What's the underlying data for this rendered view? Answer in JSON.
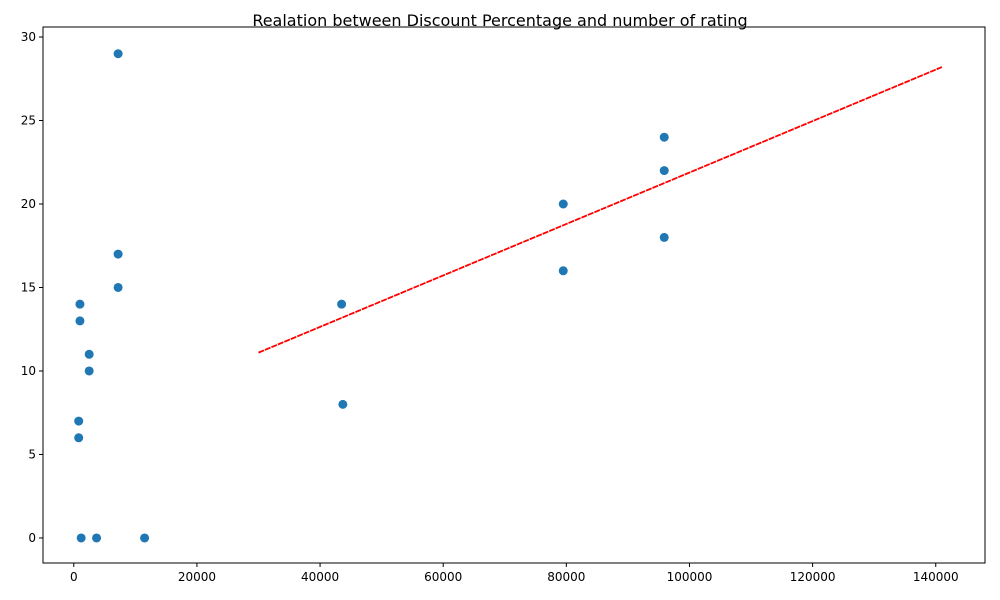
{
  "chart_data": {
    "type": "scatter",
    "title": "Realation between Discount Percentage and number of rating",
    "xlabel": "",
    "ylabel": "",
    "xlim": [
      -5000,
      148000
    ],
    "ylim": [
      -1.5,
      30.6
    ],
    "xticks": [
      0,
      20000,
      40000,
      60000,
      80000,
      100000,
      120000,
      140000
    ],
    "yticks": [
      0,
      5,
      10,
      15,
      20,
      25,
      30
    ],
    "grid": false,
    "point_color": "#1f77b4",
    "line_color": "#ff0000",
    "points": [
      {
        "x": 7200,
        "y": 29
      },
      {
        "x": 95900,
        "y": 24
      },
      {
        "x": 95900,
        "y": 22
      },
      {
        "x": 79500,
        "y": 20
      },
      {
        "x": 95900,
        "y": 18
      },
      {
        "x": 7200,
        "y": 17
      },
      {
        "x": 79500,
        "y": 16
      },
      {
        "x": 7200,
        "y": 15
      },
      {
        "x": 43500,
        "y": 14
      },
      {
        "x": 1000,
        "y": 14
      },
      {
        "x": 1000,
        "y": 13
      },
      {
        "x": 2500,
        "y": 11
      },
      {
        "x": 2500,
        "y": 10
      },
      {
        "x": 43700,
        "y": 8
      },
      {
        "x": 800,
        "y": 7
      },
      {
        "x": 800,
        "y": 6
      },
      {
        "x": 1200,
        "y": 0
      },
      {
        "x": 3700,
        "y": 0
      },
      {
        "x": 11500,
        "y": 0
      }
    ],
    "trendline": {
      "x": [
        30000,
        141000
      ],
      "y": [
        11.1,
        28.2
      ]
    }
  }
}
